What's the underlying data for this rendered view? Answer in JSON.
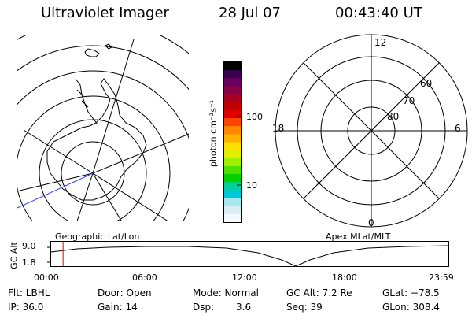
{
  "header": {
    "title": "Ultraviolet Imager",
    "date": "28 Jul 07",
    "time": "00:43:40 UT"
  },
  "colorbar": {
    "unit_label": "photon cm⁻²s⁻¹",
    "ticks": [
      "100",
      "10"
    ],
    "colors": [
      "#000000",
      "#3a0050",
      "#6a0060",
      "#8a0044",
      "#a80022",
      "#c00000",
      "#e00000",
      "#ff4400",
      "#ff8800",
      "#ffb000",
      "#ffe000",
      "#e0f000",
      "#a0f000",
      "#50e000",
      "#00d000",
      "#00d0a0",
      "#00c8d8",
      "#a8e8f0",
      "#d8f0f4",
      "#f4fbfc"
    ]
  },
  "mlt_grid": {
    "lat_labels": [
      "80",
      "70",
      "60"
    ],
    "mlt_labels": [
      "12",
      "18",
      "6",
      "0"
    ]
  },
  "map_labels": {
    "left": "Geographic Lat/Lon",
    "right": "Apex MLat/MLT"
  },
  "timeline": {
    "y_axis_title": "GC Alt",
    "y_ticks": [
      "9.0",
      "1.8"
    ],
    "x_ticks": [
      "00:00",
      "06:00",
      "12:00",
      "18:00",
      "23:59"
    ],
    "current_time_fraction": 0.03
  },
  "footer": {
    "flt": "Flt: LBHL",
    "ip": "IP: 36.0",
    "door": "Door: Open",
    "gain": "Gain: 14",
    "mode": "Mode: Normal",
    "dsp_label": "Dsp:",
    "dsp_value": "3.6",
    "gc_alt": "GC Alt: 7.2 Re",
    "seq": "Seq: 39",
    "glat": "GLat: −78.5",
    "glon": "GLon: 308.4"
  }
}
